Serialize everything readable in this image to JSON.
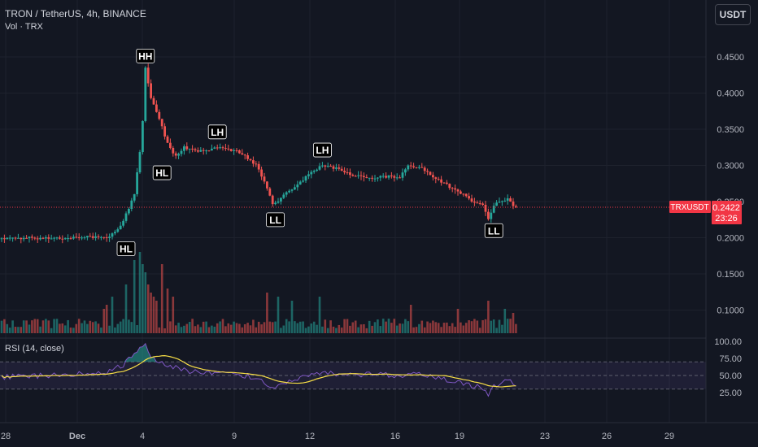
{
  "header": {
    "title": "TRON / TetherUS, 4h, BINANCE",
    "volume_label": "Vol · TRX",
    "currency_button": "USDT",
    "rsi_label": "RSI (14, close)"
  },
  "price_marker": {
    "symbol": "TRXUSDT",
    "price": "0.2422",
    "countdown": "23:26",
    "color": "#f23645"
  },
  "colors": {
    "up": "#26a69a",
    "down": "#ef5350",
    "background": "#131722",
    "rsi_line": "#7e57c2",
    "rsi_ma": "#f7de46"
  },
  "chart_data": {
    "type": "candlestick",
    "price_axis": {
      "ticks": [
        "0.4500",
        "0.4000",
        "0.3500",
        "0.3000",
        "0.2500",
        "0.2000",
        "0.1500",
        "0.1000"
      ]
    },
    "rsi_axis": {
      "ticks": [
        "100.00",
        "75.00",
        "50.00",
        "25.00"
      ],
      "band": [
        30,
        70
      ]
    },
    "x_axis": {
      "ticks": [
        "28",
        "Dec",
        "4",
        "9",
        "12",
        "16",
        "19",
        "23",
        "26",
        "29"
      ]
    },
    "annotations": [
      {
        "text": "HL",
        "date": "Dec 3",
        "price": 0.2
      },
      {
        "text": "HH",
        "date": "Dec 4",
        "price": 0.435
      },
      {
        "text": "HL",
        "date": "Dec 5",
        "price": 0.305
      },
      {
        "text": "LH",
        "date": "Dec 7",
        "price": 0.33
      },
      {
        "text": "LL",
        "date": "Dec 10",
        "price": 0.24
      },
      {
        "text": "LH",
        "date": "Dec 12",
        "price": 0.305
      },
      {
        "text": "LL",
        "date": "Dec 20",
        "price": 0.225
      }
    ],
    "waypoints": [
      [
        0,
        0.199
      ],
      [
        20,
        0.2
      ],
      [
        38,
        0.201
      ],
      [
        42,
        0.21
      ],
      [
        46,
        0.24
      ],
      [
        48,
        0.26
      ],
      [
        50,
        0.32
      ],
      [
        51,
        0.36
      ],
      [
        52,
        0.435
      ],
      [
        54,
        0.395
      ],
      [
        56,
        0.375
      ],
      [
        60,
        0.33
      ],
      [
        63,
        0.312
      ],
      [
        66,
        0.325
      ],
      [
        72,
        0.32
      ],
      [
        78,
        0.325
      ],
      [
        86,
        0.318
      ],
      [
        92,
        0.3
      ],
      [
        96,
        0.27
      ],
      [
        98,
        0.245
      ],
      [
        101,
        0.255
      ],
      [
        106,
        0.27
      ],
      [
        112,
        0.29
      ],
      [
        116,
        0.3
      ],
      [
        122,
        0.295
      ],
      [
        128,
        0.285
      ],
      [
        134,
        0.283
      ],
      [
        140,
        0.285
      ],
      [
        144,
        0.283
      ],
      [
        147,
        0.3
      ],
      [
        152,
        0.295
      ],
      [
        160,
        0.275
      ],
      [
        166,
        0.262
      ],
      [
        170,
        0.25
      ],
      [
        174,
        0.245
      ],
      [
        176,
        0.225
      ],
      [
        178,
        0.245
      ],
      [
        183,
        0.253
      ],
      [
        186,
        0.242
      ]
    ],
    "volume_spikes": [
      [
        37,
        0.3
      ],
      [
        38,
        0.35
      ],
      [
        40,
        0.45
      ],
      [
        45,
        0.6
      ],
      [
        48,
        0.9
      ],
      [
        50,
        1.0
      ],
      [
        51,
        0.85
      ],
      [
        52,
        0.75
      ],
      [
        53,
        0.6
      ],
      [
        54,
        0.5
      ],
      [
        55,
        0.45
      ],
      [
        56,
        0.4
      ],
      [
        58,
        0.85
      ],
      [
        60,
        0.55
      ],
      [
        62,
        0.45
      ],
      [
        96,
        0.5
      ],
      [
        100,
        0.45
      ],
      [
        105,
        0.4
      ],
      [
        115,
        0.45
      ],
      [
        148,
        0.35
      ],
      [
        165,
        0.3
      ],
      [
        176,
        0.4
      ],
      [
        182,
        0.3
      ],
      [
        185,
        0.25
      ]
    ],
    "rsi_waypoints": [
      [
        0,
        48
      ],
      [
        20,
        50
      ],
      [
        38,
        55
      ],
      [
        44,
        66
      ],
      [
        48,
        80
      ],
      [
        50,
        88
      ],
      [
        52,
        97
      ],
      [
        54,
        78
      ],
      [
        57,
        70
      ],
      [
        62,
        62
      ],
      [
        70,
        55
      ],
      [
        80,
        55
      ],
      [
        90,
        48
      ],
      [
        96,
        38
      ],
      [
        98,
        33
      ],
      [
        102,
        38
      ],
      [
        110,
        48
      ],
      [
        116,
        55
      ],
      [
        120,
        52
      ],
      [
        128,
        50
      ],
      [
        136,
        52
      ],
      [
        144,
        48
      ],
      [
        148,
        55
      ],
      [
        152,
        50
      ],
      [
        160,
        45
      ],
      [
        166,
        40
      ],
      [
        170,
        35
      ],
      [
        174,
        32
      ],
      [
        176,
        22
      ],
      [
        178,
        35
      ],
      [
        182,
        43
      ],
      [
        186,
        37
      ]
    ]
  }
}
